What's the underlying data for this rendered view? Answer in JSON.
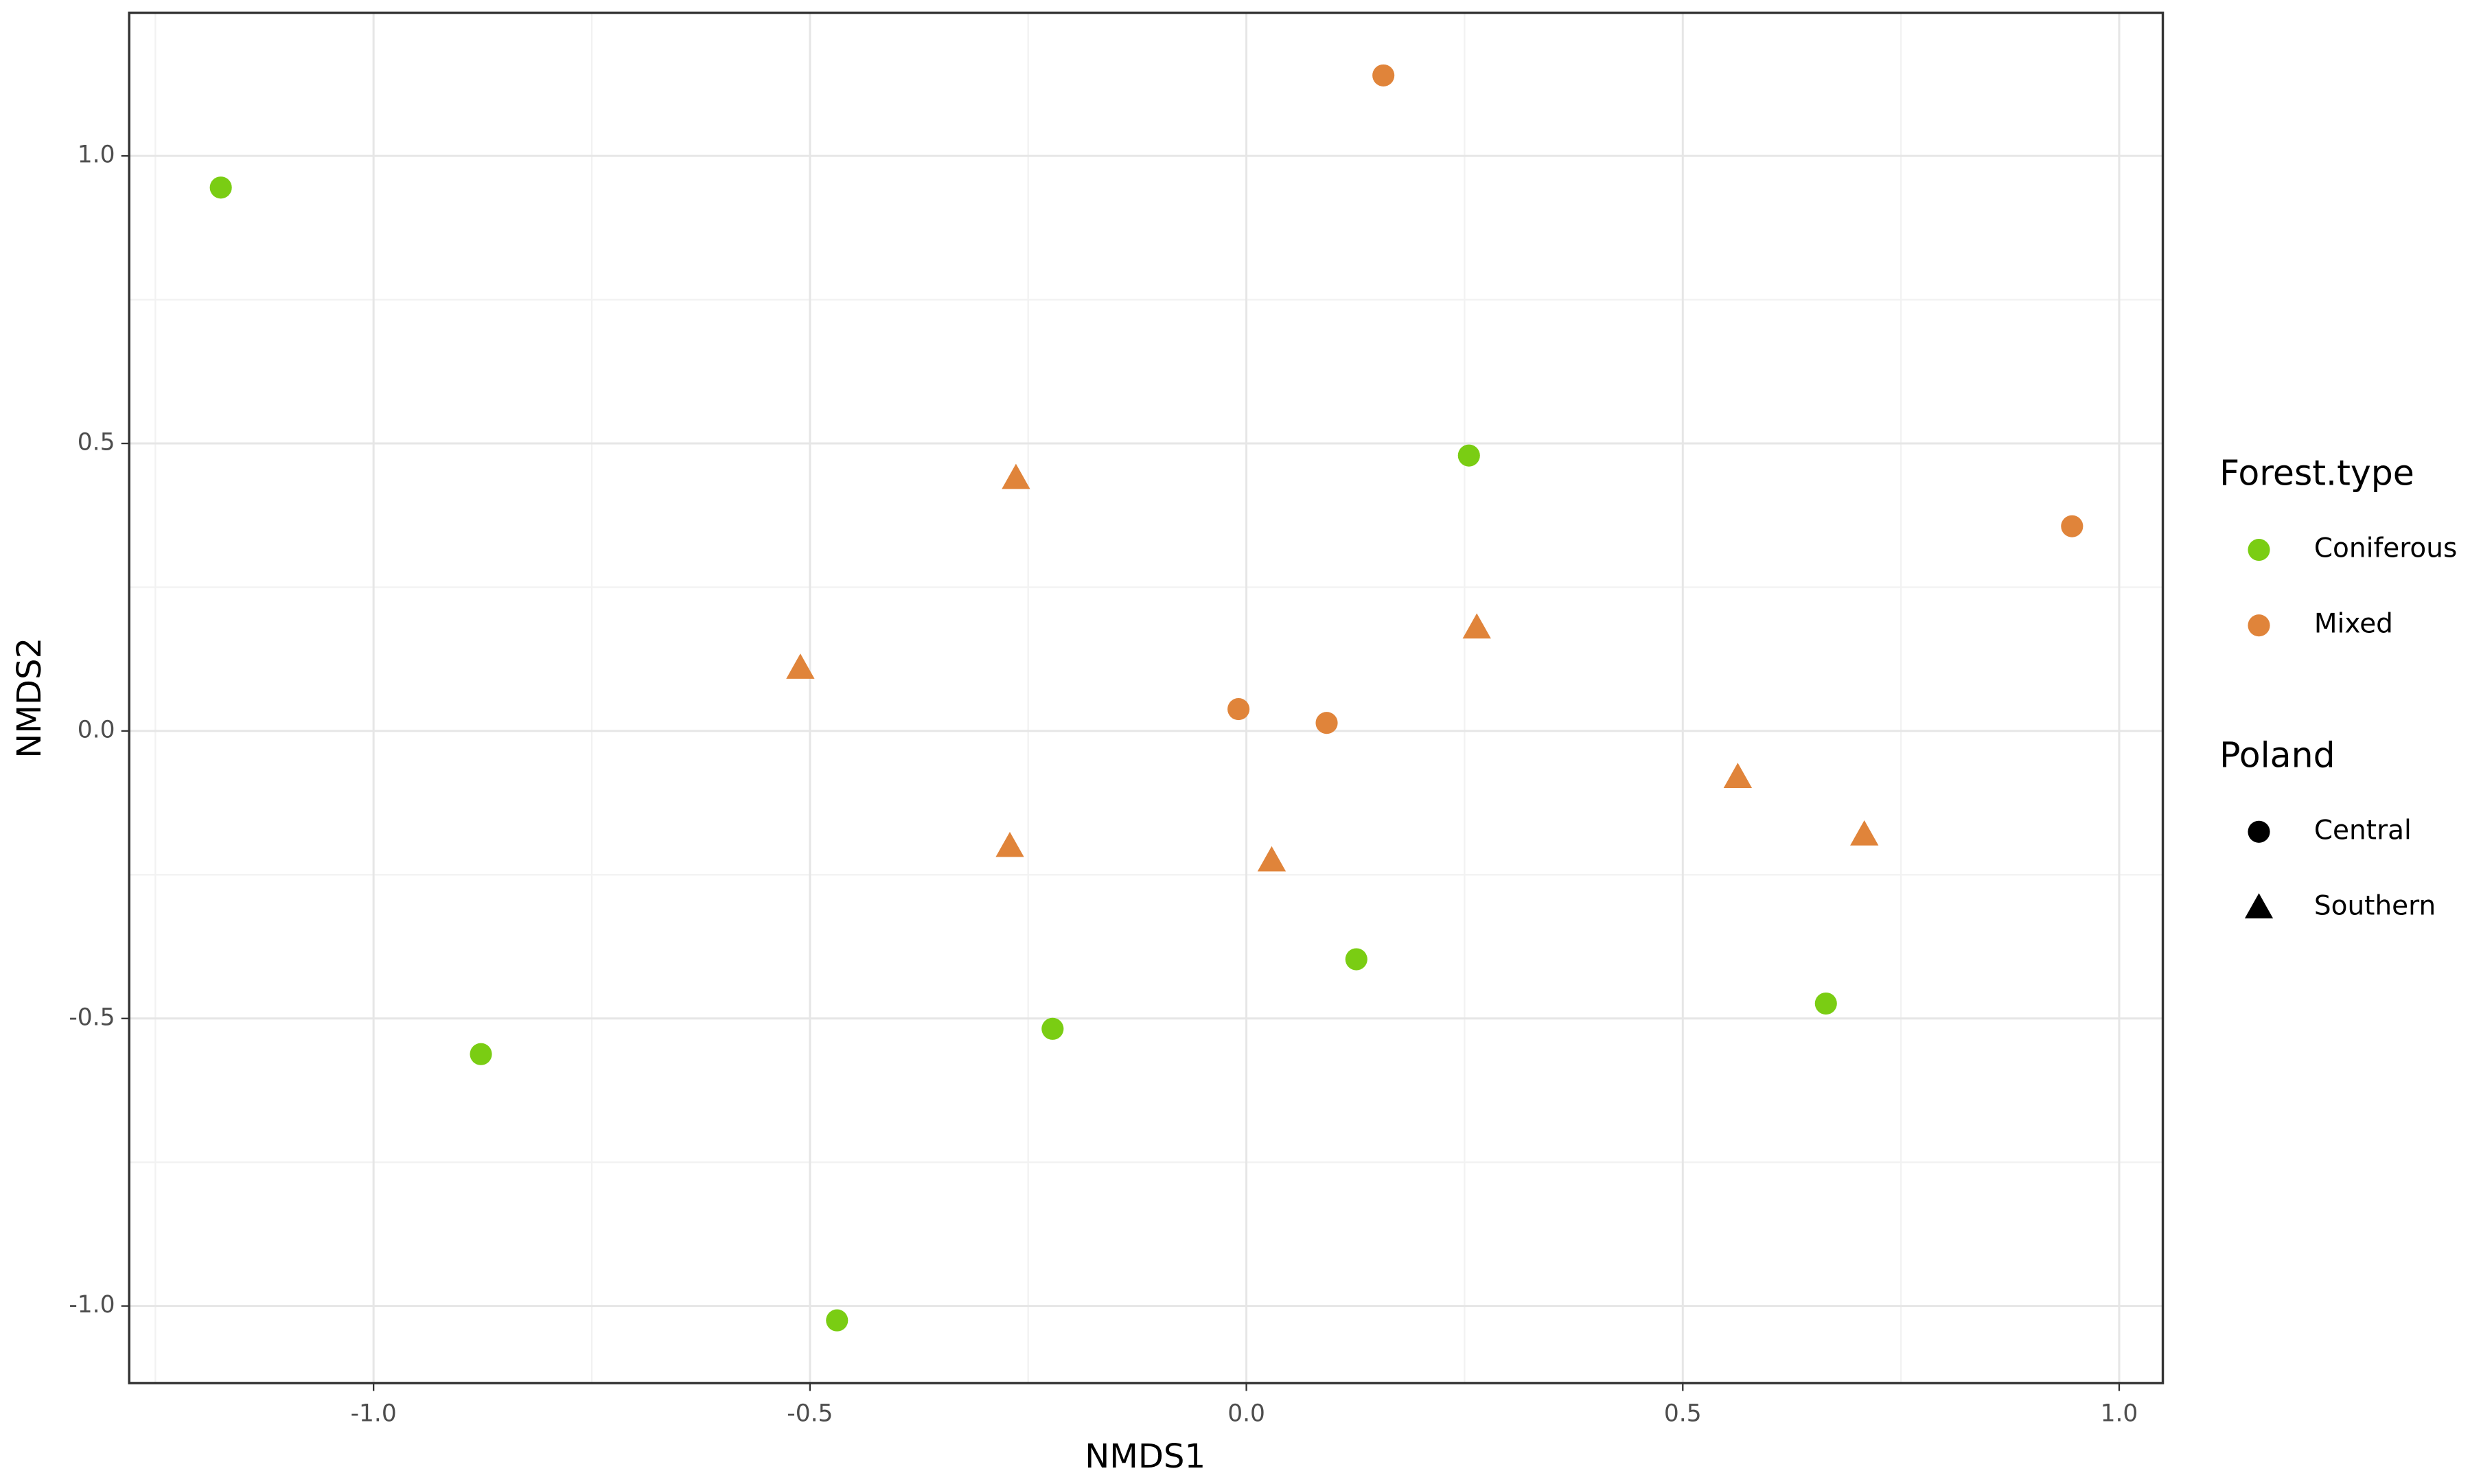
{
  "chart_data": {
    "type": "scatter",
    "x_label": "NMDS1",
    "y_label": "NMDS2",
    "xlim": [
      -1.28,
      1.05
    ],
    "ylim": [
      -1.134,
      1.249
    ],
    "xticks": [
      {
        "value": -1.0,
        "label": "-1.0"
      },
      {
        "value": -0.5,
        "label": "-0.5"
      },
      {
        "value": 0.0,
        "label": "0.0"
      },
      {
        "value": 0.5,
        "label": "0.5"
      },
      {
        "value": 1.0,
        "label": "1.0"
      }
    ],
    "yticks": [
      {
        "value": -1.0,
        "label": "-1.0"
      },
      {
        "value": -0.5,
        "label": "-0.5"
      },
      {
        "value": 0.0,
        "label": "0.0"
      },
      {
        "value": 0.5,
        "label": "0.5"
      },
      {
        "value": 1.0,
        "label": "1.0"
      }
    ],
    "x_minor_ticks": [
      -1.25,
      -0.75,
      -0.25,
      0.25,
      0.75
    ],
    "y_minor_ticks": [
      -0.75,
      -0.25,
      0.25,
      0.75
    ],
    "grid": true,
    "series": [
      {
        "name": "Coniferous",
        "color": "#7acd13",
        "x": [
          -1.175,
          -0.877,
          -0.469,
          -0.222,
          0.126,
          0.255,
          0.664
        ],
        "values": [
          0.945,
          -0.562,
          -1.025,
          -0.518,
          -0.397,
          0.479,
          -0.474
        ],
        "shape": [
          "circle",
          "circle",
          "circle",
          "circle",
          "circle",
          "circle",
          "circle"
        ]
      },
      {
        "name": "Mixed",
        "color": "#e0843a",
        "x": [
          0.157,
          -0.009,
          0.092,
          0.946,
          -0.264,
          -0.511,
          -0.271,
          0.029,
          0.264,
          0.563,
          0.708
        ],
        "values": [
          1.14,
          0.038,
          0.014,
          0.356,
          0.44,
          0.11,
          -0.2,
          -0.225,
          0.18,
          -0.08,
          -0.18
        ],
        "shape": [
          "circle",
          "circle",
          "circle",
          "circle",
          "triangle",
          "triangle",
          "triangle",
          "triangle",
          "triangle",
          "triangle",
          "triangle"
        ]
      }
    ],
    "legend_title": "Forest.type",
    "shape_legend": {
      "title": "Poland",
      "items": [
        {
          "label": "Central",
          "shape": "circle"
        },
        {
          "label": "Southern",
          "shape": "triangle"
        }
      ]
    }
  }
}
